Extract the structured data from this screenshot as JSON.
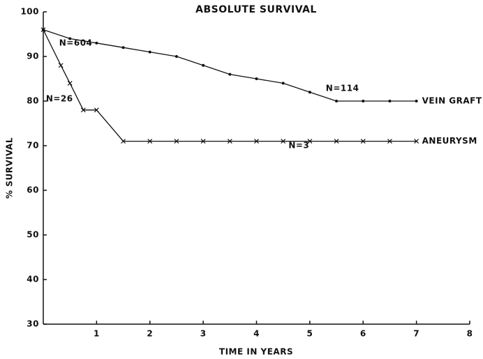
{
  "chart_data": {
    "type": "line",
    "title": "ABSOLUTE SURVIVAL",
    "x_label": "TIME IN YEARS",
    "y_label": "% SURVIVAL",
    "xlim": [
      0,
      8
    ],
    "xticks": [
      1,
      2,
      3,
      4,
      5,
      6,
      7,
      8
    ],
    "ylim": [
      30,
      100
    ],
    "yticks": [
      30,
      40,
      50,
      60,
      70,
      80,
      90,
      100
    ],
    "series": [
      {
        "name": "VEIN GRAFT",
        "color": "#111111",
        "marker": "dot",
        "x": [
          0,
          0.5,
          1,
          1.5,
          2,
          2.5,
          3,
          3.5,
          4,
          4.5,
          5,
          5.5,
          6,
          6.5,
          7
        ],
        "values": [
          96,
          94,
          93,
          92,
          91,
          90,
          88,
          86,
          85,
          84,
          82,
          80,
          80,
          80,
          80
        ]
      },
      {
        "name": "ANEURYSM",
        "color": "#111111",
        "marker": "x",
        "x": [
          0,
          0.33,
          0.5,
          0.75,
          1,
          1.5,
          2,
          2.5,
          3,
          3.5,
          4,
          4.5,
          5,
          5.5,
          6,
          6.5,
          7
        ],
        "values": [
          96,
          88,
          84,
          78,
          78,
          71,
          71,
          71,
          71,
          71,
          71,
          71,
          71,
          71,
          71,
          71,
          71
        ]
      }
    ],
    "annotations": [
      "N=604",
      "N=26",
      "N=114",
      "N=3"
    ]
  }
}
